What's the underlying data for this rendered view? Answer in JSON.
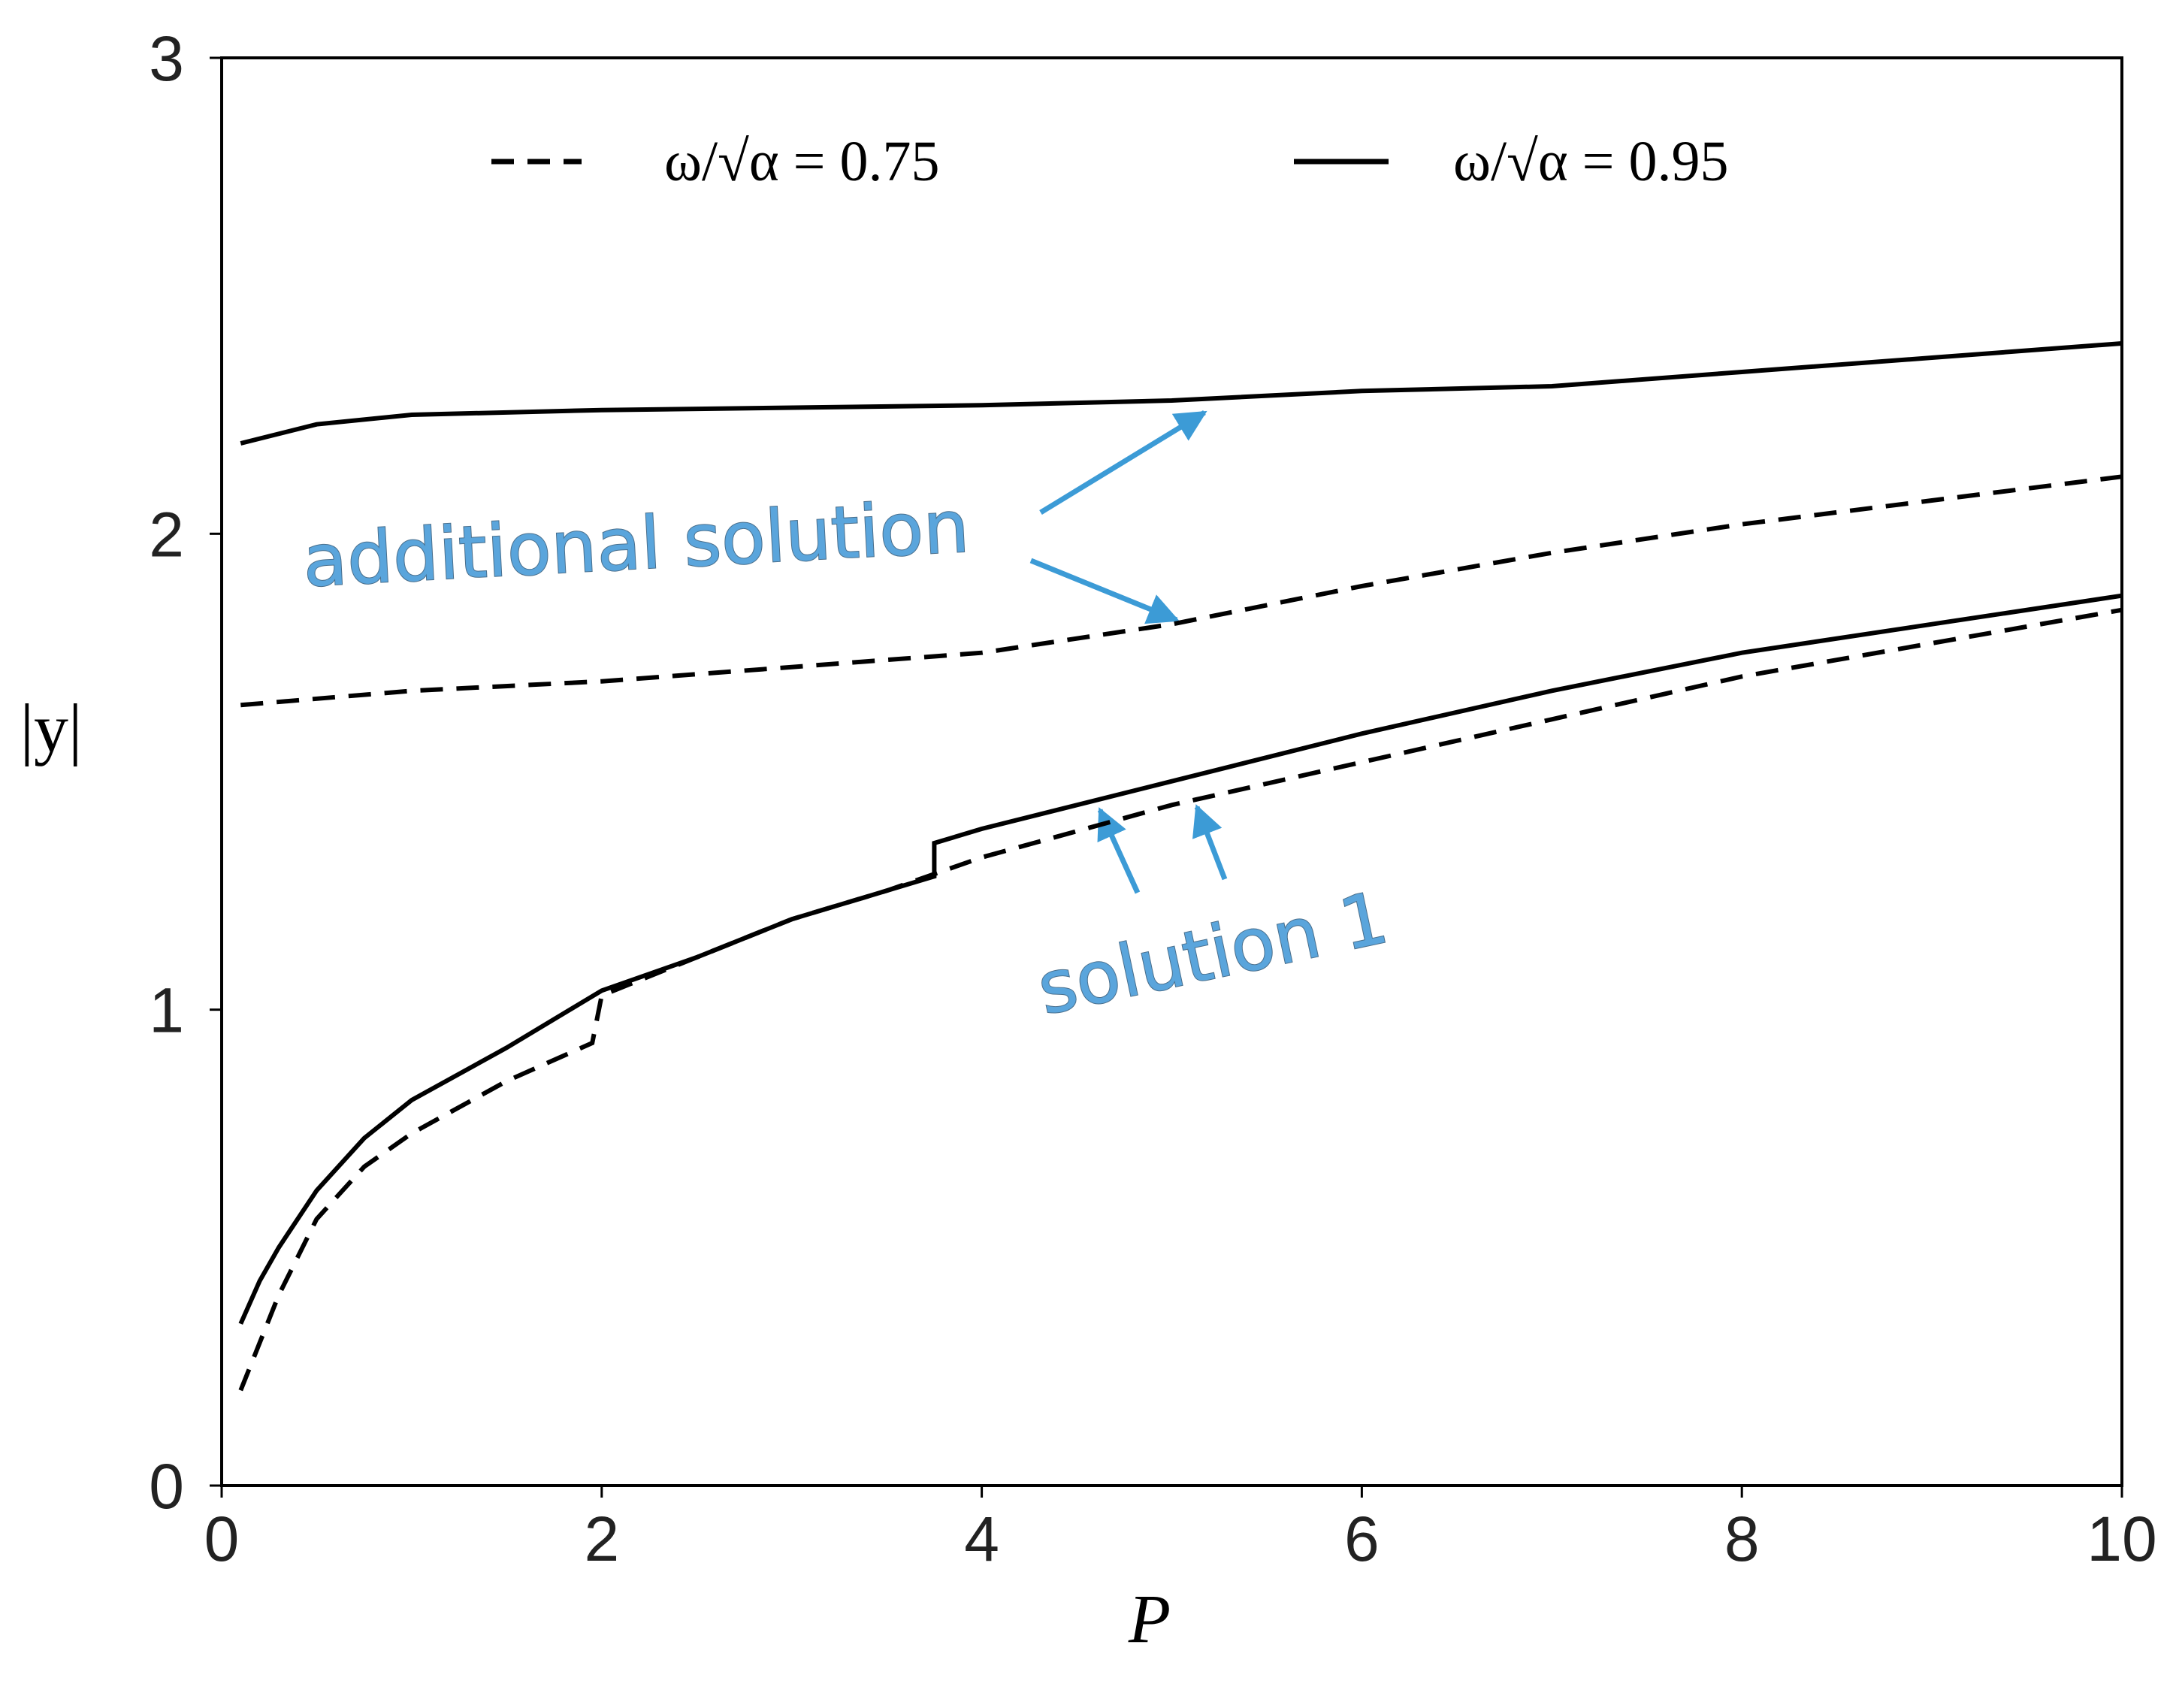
{
  "chart_data": {
    "type": "line",
    "x_label": "P",
    "y_label": "|y|",
    "xlim": [
      0,
      10
    ],
    "xticks": [
      0,
      2,
      4,
      6,
      8,
      10
    ],
    "ylim": [
      0,
      3
    ],
    "yticks": [
      0,
      1,
      2,
      3
    ],
    "grid": false,
    "legend": "top",
    "series": [
      {
        "name": "ω/√α = 0.75",
        "color": "#000000",
        "linestyle": "dashed",
        "x": [
          0.1,
          0.2,
          0.3,
          0.5,
          0.75,
          1,
          1.5,
          1.95,
          2,
          2.5,
          3,
          3.5,
          4,
          5,
          6,
          7,
          8,
          9,
          10
        ],
        "values": [
          0.2,
          0.3,
          0.4,
          0.56,
          0.67,
          0.74,
          0.85,
          0.93,
          1.03,
          1.11,
          1.19,
          1.25,
          1.32,
          1.43,
          1.52,
          1.61,
          1.7,
          1.77,
          1.84
        ]
      },
      {
        "name": "ω/√α = 0.95",
        "color": "#000000",
        "linestyle": "solid",
        "x": [
          0.1,
          0.2,
          0.3,
          0.5,
          0.75,
          1,
          1.5,
          2,
          2.5,
          3,
          3.5,
          3.75,
          3.75,
          4,
          5,
          6,
          7,
          8,
          9,
          10
        ],
        "values": [
          0.34,
          0.43,
          0.5,
          0.62,
          0.73,
          0.81,
          0.92,
          1.04,
          1.11,
          1.19,
          1.25,
          1.28,
          1.35,
          1.38,
          1.48,
          1.58,
          1.67,
          1.75,
          1.81,
          1.87
        ]
      },
      {
        "color": "#000000",
        "linestyle": "dashed",
        "x": [
          0.1,
          1,
          2,
          3,
          4,
          5,
          6,
          7,
          8,
          9,
          10
        ],
        "values": [
          1.64,
          1.67,
          1.69,
          1.72,
          1.75,
          1.81,
          1.89,
          1.96,
          2.02,
          2.07,
          2.12
        ]
      },
      {
        "color": "#000000",
        "linestyle": "solid",
        "x": [
          0.1,
          0.5,
          1,
          2,
          4,
          5,
          6,
          7,
          8,
          9,
          10
        ],
        "values": [
          2.19,
          2.23,
          2.25,
          2.26,
          2.27,
          2.28,
          2.3,
          2.31,
          2.34,
          2.37,
          2.4
        ]
      }
    ],
    "annotations": [
      {
        "text": "additional solution",
        "color": "#5aa5dc"
      },
      {
        "text": "solution 1",
        "color": "#5aa5dc"
      }
    ]
  }
}
